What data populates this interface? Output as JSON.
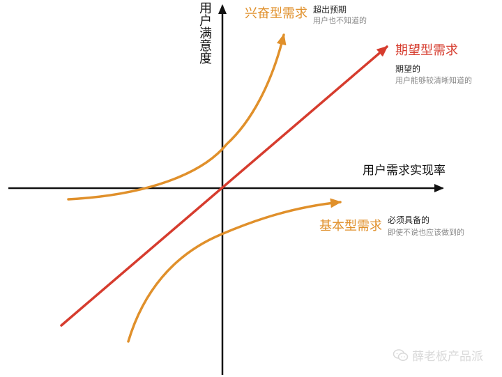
{
  "axes": {
    "y_label": "用户满意度",
    "x_label": "用户需求实现率"
  },
  "curves": {
    "excitement": {
      "title": "兴奋型需求",
      "note_main": "超出预期",
      "note_sub": "用户也不知道的"
    },
    "performance": {
      "title": "期望型需求",
      "note_main": "期望的",
      "note_sub": "用户能够较清晰知道的"
    },
    "basic": {
      "title": "基本型需求",
      "note_main": "必须具备的",
      "note_sub": "即使不说也应该做到的"
    }
  },
  "colors": {
    "axis": "#111111",
    "excitement": "#e0902b",
    "performance": "#d63c2e",
    "basic": "#e0902b"
  },
  "watermark": {
    "icon": "wechat-icon",
    "text": "薛老板产品派"
  }
}
